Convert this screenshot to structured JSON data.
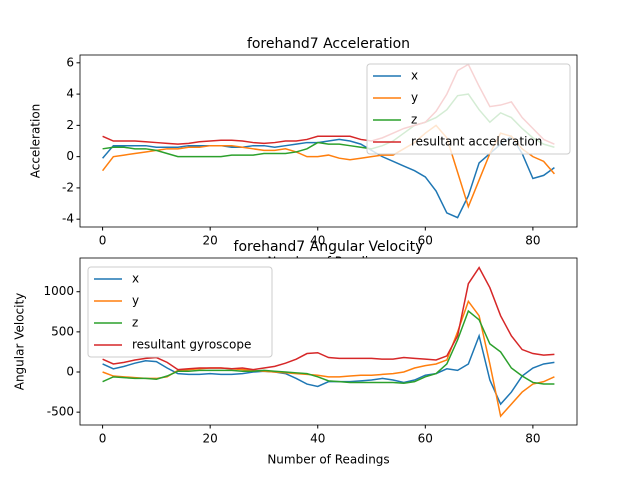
{
  "chart_data": [
    {
      "type": "line",
      "title": "forehand7 Acceleration",
      "x_label": "Number of Readings",
      "y_label": "Acceleration",
      "x": [
        0,
        2,
        4,
        6,
        8,
        10,
        12,
        14,
        16,
        18,
        20,
        22,
        24,
        26,
        28,
        30,
        32,
        34,
        36,
        38,
        40,
        42,
        44,
        46,
        48,
        50,
        52,
        54,
        56,
        58,
        60,
        62,
        64,
        66,
        68,
        70,
        72,
        74,
        76,
        78,
        80,
        82,
        84
      ],
      "series": [
        {
          "name": "x",
          "color": "#1f77b4",
          "values": [
            -0.1,
            0.7,
            0.7,
            0.7,
            0.7,
            0.6,
            0.6,
            0.6,
            0.7,
            0.7,
            0.7,
            0.7,
            0.6,
            0.6,
            0.7,
            0.7,
            0.6,
            0.7,
            0.8,
            0.9,
            0.9,
            1.0,
            1.1,
            1.0,
            0.8,
            0.4,
            0.0,
            -0.3,
            -0.6,
            -0.9,
            -1.3,
            -2.2,
            -3.6,
            -3.9,
            -2.5,
            -0.4,
            0.2,
            0.8,
            1.3,
            0.2,
            -1.4,
            -1.2,
            -0.7
          ]
        },
        {
          "name": "y",
          "color": "#ff7f0e",
          "values": [
            -0.9,
            0.0,
            0.1,
            0.2,
            0.3,
            0.4,
            0.5,
            0.5,
            0.6,
            0.6,
            0.7,
            0.7,
            0.7,
            0.6,
            0.5,
            0.4,
            0.4,
            0.5,
            0.3,
            0.0,
            0.0,
            0.1,
            -0.1,
            -0.2,
            -0.1,
            0.0,
            0.1,
            0.1,
            0.5,
            0.9,
            1.5,
            2.0,
            1.2,
            -1.0,
            -3.2,
            -1.5,
            0.2,
            1.5,
            1.3,
            0.5,
            0.0,
            -0.3,
            -1.1
          ]
        },
        {
          "name": "z",
          "color": "#2ca02c",
          "values": [
            0.5,
            0.6,
            0.6,
            0.5,
            0.5,
            0.4,
            0.2,
            0.0,
            0.0,
            0.0,
            0.0,
            0.0,
            0.1,
            0.1,
            0.1,
            0.2,
            0.2,
            0.2,
            0.3,
            0.5,
            0.9,
            0.8,
            0.8,
            0.7,
            0.6,
            0.5,
            0.7,
            1.0,
            1.5,
            2.0,
            2.2,
            2.5,
            3.0,
            3.9,
            4.0,
            3.0,
            2.2,
            2.8,
            2.5,
            1.8,
            1.2,
            0.8,
            0.6
          ]
        },
        {
          "name": "resultant acceleration",
          "color": "#d62728",
          "values": [
            1.3,
            1.0,
            1.0,
            1.0,
            0.95,
            0.9,
            0.85,
            0.8,
            0.85,
            0.95,
            1.0,
            1.05,
            1.05,
            1.0,
            0.9,
            0.85,
            0.9,
            1.0,
            1.0,
            1.1,
            1.3,
            1.3,
            1.3,
            1.3,
            1.1,
            1.0,
            1.2,
            1.5,
            1.8,
            2.0,
            2.2,
            2.9,
            4.0,
            5.5,
            5.9,
            4.5,
            3.2,
            3.3,
            3.5,
            2.5,
            1.8,
            1.1,
            0.8
          ]
        }
      ],
      "xlim": [
        -4.2,
        88.2
      ],
      "xticks": [
        0,
        20,
        40,
        60,
        80
      ],
      "ylim": [
        -4.5,
        6.5
      ],
      "yticks": [
        -4,
        -2,
        0,
        2,
        4,
        6
      ],
      "legend": "upper right"
    },
    {
      "type": "line",
      "title": "forehand7 Angular Velocity",
      "x_label": "Number of Readings",
      "y_label": "Angular Velocity",
      "x": [
        0,
        2,
        4,
        6,
        8,
        10,
        12,
        14,
        16,
        18,
        20,
        22,
        24,
        26,
        28,
        30,
        32,
        34,
        36,
        38,
        40,
        42,
        44,
        46,
        48,
        50,
        52,
        54,
        56,
        58,
        60,
        62,
        64,
        66,
        68,
        70,
        72,
        74,
        76,
        78,
        80,
        82,
        84
      ],
      "series": [
        {
          "name": "x",
          "color": "#1f77b4",
          "values": [
            100,
            40,
            70,
            110,
            140,
            130,
            50,
            -20,
            -30,
            -30,
            -20,
            -30,
            -30,
            -20,
            0,
            10,
            0,
            -20,
            -80,
            -150,
            -180,
            -120,
            -120,
            -120,
            -110,
            -100,
            -80,
            -100,
            -130,
            -100,
            -40,
            -20,
            40,
            20,
            100,
            450,
            -100,
            -400,
            -250,
            -50,
            50,
            100,
            120
          ]
        },
        {
          "name": "y",
          "color": "#ff7f0e",
          "values": [
            0,
            -50,
            -60,
            -70,
            -80,
            -80,
            -60,
            20,
            30,
            40,
            50,
            50,
            40,
            30,
            20,
            10,
            0,
            -10,
            -20,
            -30,
            -40,
            -60,
            -60,
            -50,
            -40,
            -40,
            -30,
            -20,
            0,
            50,
            80,
            100,
            150,
            500,
            880,
            700,
            100,
            -550,
            -400,
            -250,
            -150,
            -120,
            -60
          ]
        },
        {
          "name": "z",
          "color": "#2ca02c",
          "values": [
            -120,
            -60,
            -70,
            -80,
            -80,
            -90,
            -50,
            10,
            10,
            20,
            20,
            20,
            20,
            10,
            10,
            20,
            10,
            0,
            -10,
            -20,
            -60,
            -110,
            -120,
            -130,
            -130,
            -130,
            -130,
            -130,
            -140,
            -120,
            -60,
            -20,
            100,
            400,
            760,
            650,
            350,
            250,
            50,
            -50,
            -130,
            -150,
            -150
          ]
        },
        {
          "name": "resultant gyroscope",
          "color": "#d62728",
          "values": [
            160,
            100,
            120,
            150,
            170,
            180,
            120,
            30,
            40,
            50,
            50,
            50,
            40,
            50,
            30,
            50,
            70,
            110,
            160,
            230,
            240,
            180,
            170,
            170,
            170,
            170,
            160,
            160,
            180,
            170,
            160,
            150,
            200,
            450,
            1100,
            1300,
            1050,
            700,
            450,
            280,
            230,
            210,
            220
          ]
        }
      ],
      "xlim": [
        -4.2,
        88.2
      ],
      "xticks": [
        0,
        20,
        40,
        60,
        80
      ],
      "ylim": [
        -660,
        1420
      ],
      "yticks": [
        -500,
        0,
        500,
        1000
      ],
      "legend": "upper left"
    }
  ]
}
